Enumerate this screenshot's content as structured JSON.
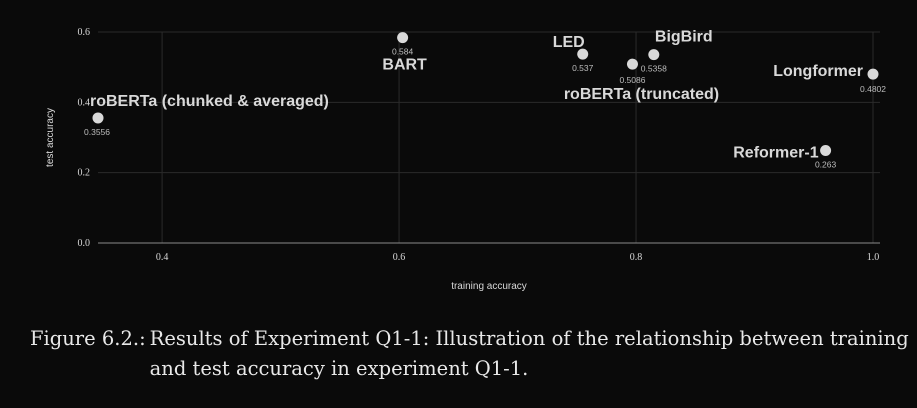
{
  "chart_data": {
    "type": "scatter",
    "title": "",
    "xlabel": "training accuracy",
    "ylabel": "test accuracy",
    "xlim": [
      0.34,
      1.0
    ],
    "ylim": [
      0.0,
      0.6
    ],
    "x_ticks": [
      "0.4",
      "0.6",
      "0.8",
      "1.0"
    ],
    "y_ticks": [
      "0.0",
      "0.2",
      "0.4",
      "0.6"
    ],
    "grid": true,
    "points": [
      {
        "name": "roBERTa (chunked & averaged)",
        "x": 0.34,
        "y": 0.3556,
        "value_label": "0.3556"
      },
      {
        "name": "BART",
        "x": 0.603,
        "y": 0.584,
        "value_label": "0.584"
      },
      {
        "name": "LED",
        "x": 0.755,
        "y": 0.537,
        "value_label": "0.537"
      },
      {
        "name": "roBERTa (truncated)",
        "x": 0.797,
        "y": 0.5086,
        "value_label": "0.5086"
      },
      {
        "name": "BigBird",
        "x": 0.815,
        "y": 0.5358,
        "value_label": "0.5358"
      },
      {
        "name": "Longformer",
        "x": 1.0,
        "y": 0.4802,
        "value_label": "0.4802"
      },
      {
        "name": "Reformer-1",
        "x": 0.96,
        "y": 0.263,
        "value_label": "0.263"
      }
    ],
    "colors": {
      "background": "#0a0a0a",
      "point": "#d9d9d9",
      "grid": "#2b2b2b",
      "text": "#d9d9d9"
    }
  },
  "caption": {
    "label": "Figure 6.2.:",
    "text": "Results of Experiment Q1-1: Illustration of the relationship between training and test accuracy in experiment Q1-1."
  }
}
